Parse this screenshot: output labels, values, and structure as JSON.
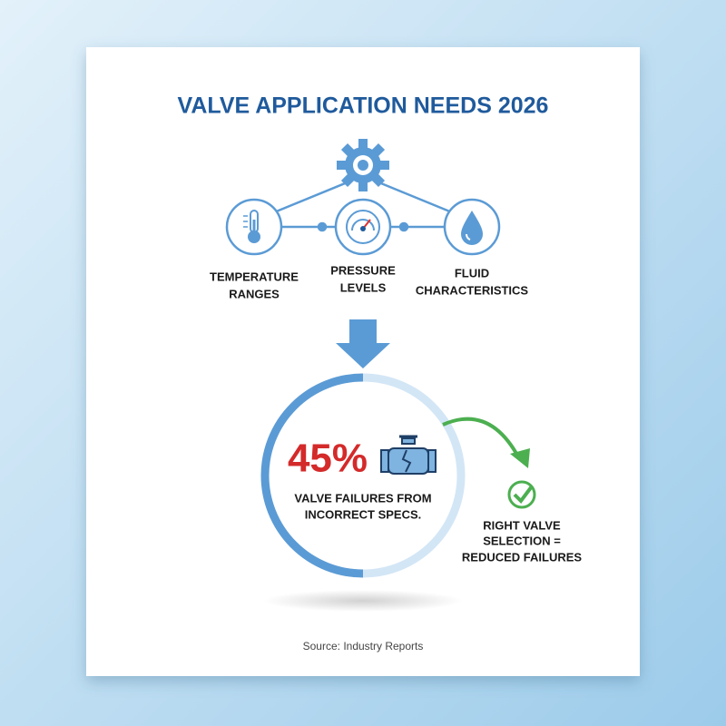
{
  "title": "VALVE APPLICATION NEEDS 2026",
  "factors": [
    {
      "lines": [
        "TEMPERATURE",
        "RANGES"
      ]
    },
    {
      "lines": [
        "PRESSURE",
        "LEVELS"
      ]
    },
    {
      "lines": [
        "FLUID",
        "CHARACTERISTICS"
      ]
    }
  ],
  "stat": {
    "value": "45%",
    "caption": [
      "VALVE FAILURES FROM",
      "INCORRECT SPECS."
    ]
  },
  "outcome": [
    "RIGHT VALVE",
    "SELECTION =",
    "REDUCED FAILURES"
  ],
  "source": "Source: Industry Reports"
}
